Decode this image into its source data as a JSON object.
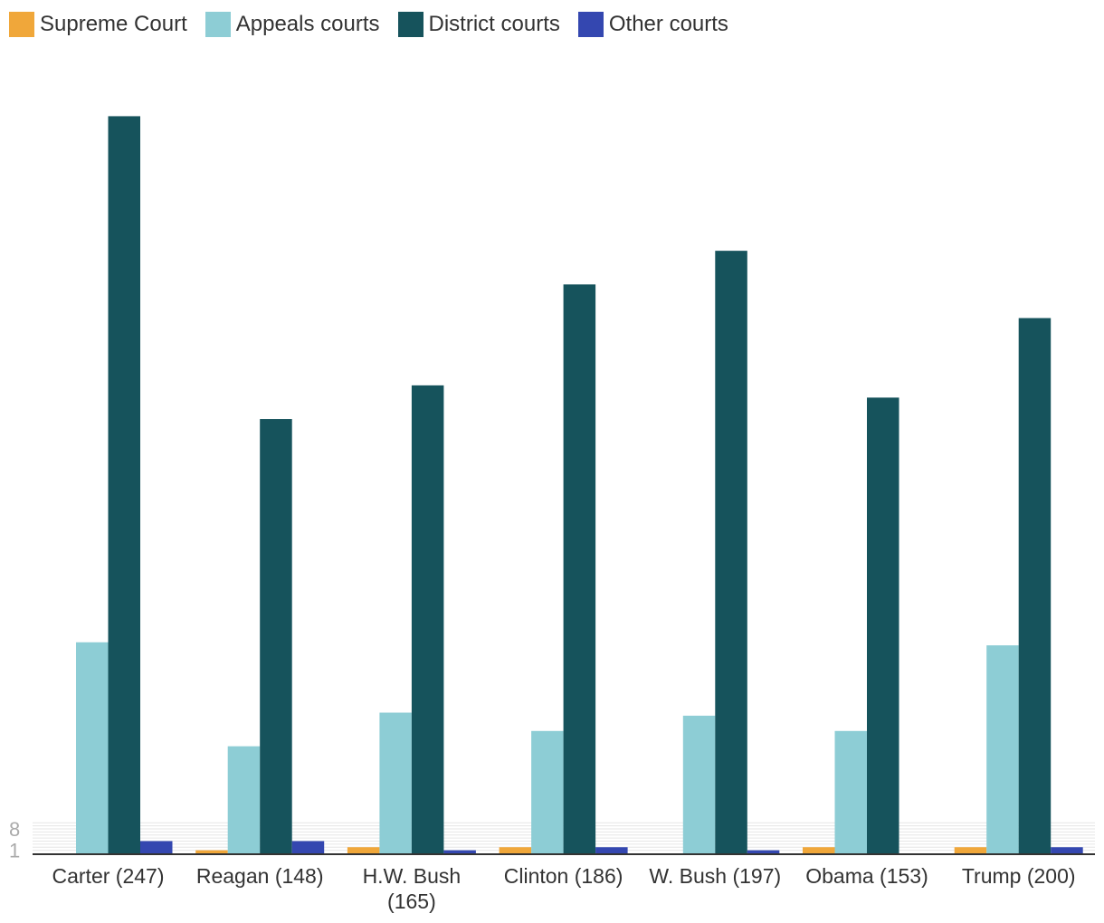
{
  "chart_data": {
    "type": "bar",
    "title": "",
    "xlabel": "",
    "ylabel": "",
    "categories": [
      "Carter (247)",
      "Reagan (148)",
      "H.W. Bush (165)",
      "Clinton (186)",
      "W. Bush (197)",
      "Obama (153)",
      "Trump (200)"
    ],
    "series": [
      {
        "name": "Supreme Court",
        "color": "#F0A73A",
        "values": [
          0,
          1,
          2,
          2,
          0,
          2,
          2
        ]
      },
      {
        "name": "Appeals courts",
        "color": "#8DCDD5",
        "values": [
          69,
          35,
          46,
          40,
          45,
          40,
          68
        ]
      },
      {
        "name": "District courts",
        "color": "#16535C",
        "values": [
          241,
          142,
          153,
          186,
          197,
          149,
          175
        ]
      },
      {
        "name": "Other courts",
        "color": "#3447B0",
        "values": [
          4,
          4,
          1,
          2,
          1,
          0,
          2
        ]
      }
    ],
    "y_tick_labels": [
      {
        "value": 1,
        "label": "1"
      },
      {
        "value": 8,
        "label": "8"
      }
    ],
    "ylim": [
      0,
      260
    ],
    "grid": true,
    "legend_position": "top-left"
  }
}
